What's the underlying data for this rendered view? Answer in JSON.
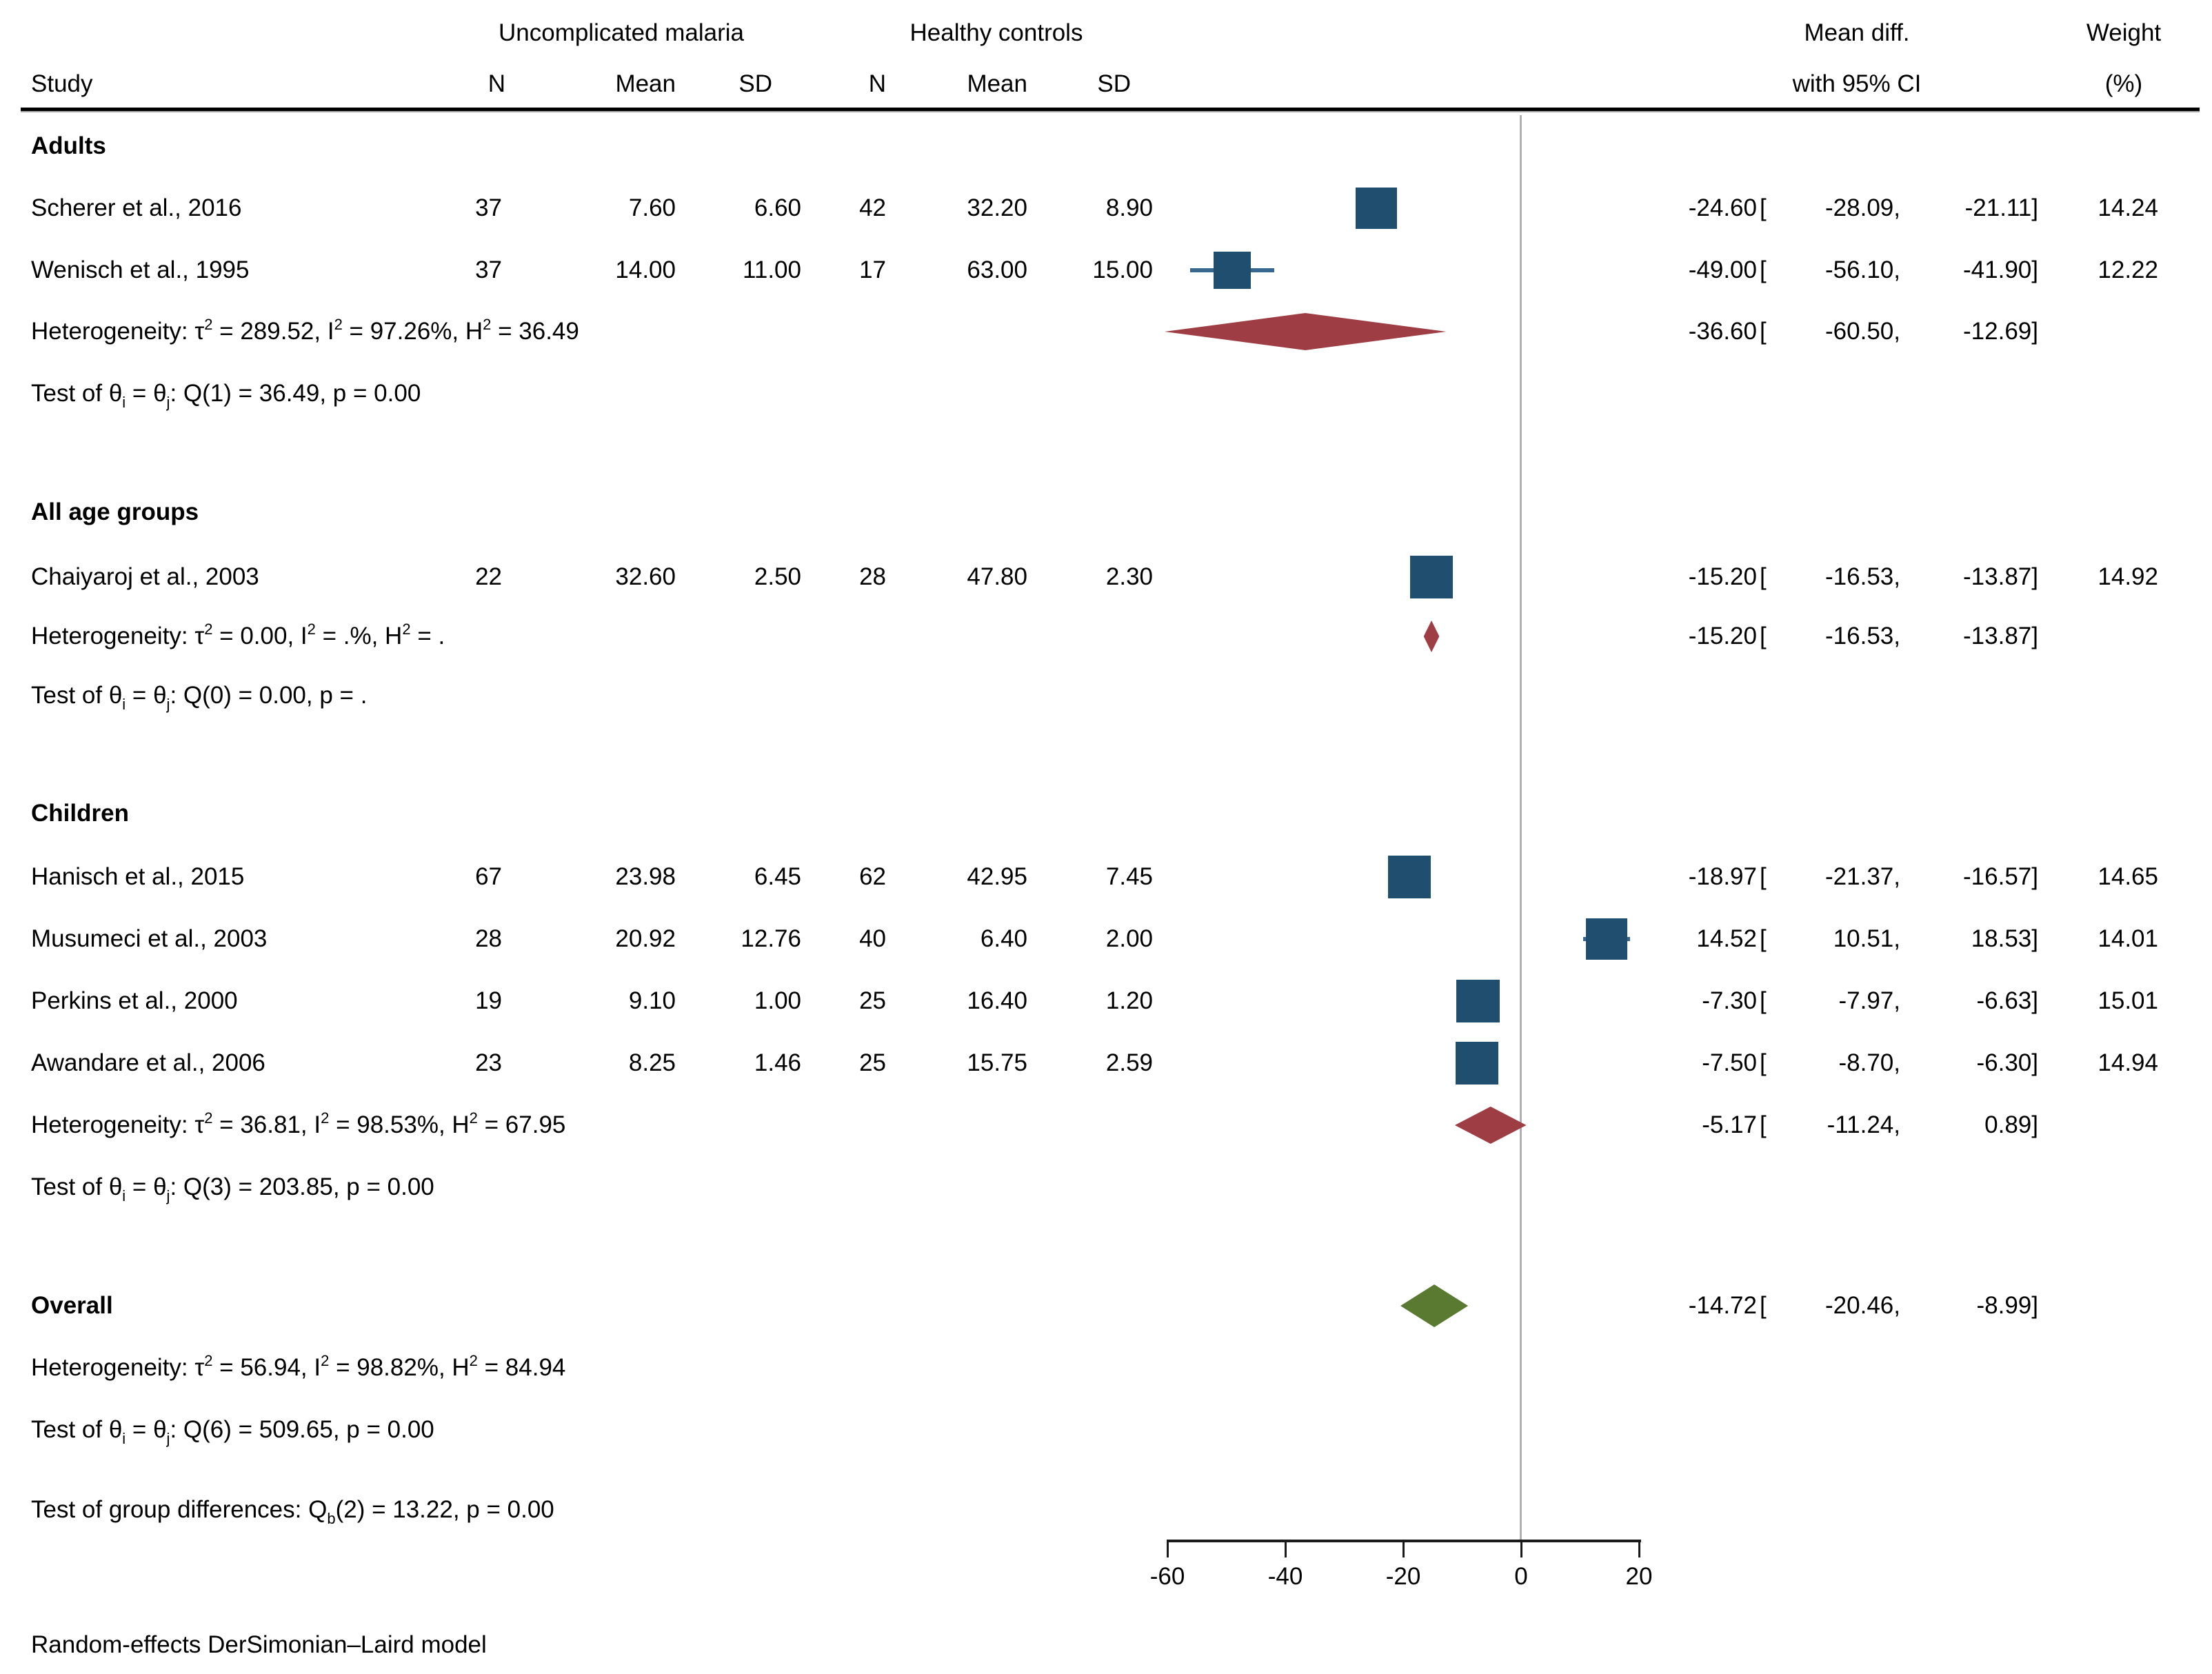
{
  "colors": {
    "blue": "#1f4e6e",
    "whisker": "#37678e",
    "maroon": "#9e3e44",
    "green": "#5a7a32",
    "zero_line": "#b0b0b0",
    "axis": "#1a1a1a"
  },
  "format": {
    "bracket_open": "["
  },
  "header": {
    "group1": "Uncomplicated malaria",
    "group2": "Healthy controls",
    "study": "Study",
    "n": "N",
    "mean": "Mean",
    "sd": "SD",
    "meandiff_line1": "Mean diff.",
    "meandiff_line2": "with 95% CI",
    "weight_line1": "Weight",
    "weight_line2": "(%)"
  },
  "footer": "Random-effects DerSimonian–Laird model",
  "chart_data": {
    "type": "forest",
    "effect_measure": "Mean diff. with 95% CI",
    "model": "Random-effects DerSimonian–Laird model",
    "x_axis": {
      "ticks": [
        -60,
        -40,
        -20,
        0,
        20
      ],
      "tick_labels": [
        "-60",
        "-40",
        "-20",
        "0",
        "20"
      ],
      "xlim": [
        -60,
        20
      ],
      "zero_reference": 0
    },
    "sections": [
      {
        "label": "Adults",
        "studies": [
          {
            "name": "Scherer et al., 2016",
            "n1": "37",
            "mean1": "7.60",
            "sd1": "6.60",
            "n2": "42",
            "mean2": "32.20",
            "sd2": "8.90",
            "est": -24.6,
            "lo": -28.09,
            "hi": -21.11,
            "weight": 14.24,
            "est_text": "-24.60",
            "lo_text": "-28.09,",
            "hi_text": "-21.11]",
            "weight_text": "14.24"
          },
          {
            "name": "Wenisch et al., 1995",
            "n1": "37",
            "mean1": "14.00",
            "sd1": "11.00",
            "n2": "17",
            "mean2": "63.00",
            "sd2": "15.00",
            "est": -49.0,
            "lo": -56.1,
            "hi": -41.9,
            "weight": 12.22,
            "est_text": "-49.00",
            "lo_text": "-56.10,",
            "hi_text": "-41.90]",
            "weight_text": "12.22"
          }
        ],
        "heterogeneity": [
          [
            "Heterogeneity: τ",
            ""
          ],
          [
            "2",
            "sup"
          ],
          [
            " = 289.52, I",
            ""
          ],
          [
            "2",
            "sup"
          ],
          [
            " = 97.26%, H",
            ""
          ],
          [
            "2",
            "sup"
          ],
          [
            " = 36.49",
            ""
          ]
        ],
        "test": [
          [
            "Test of θ",
            ""
          ],
          [
            "i",
            "sub"
          ],
          [
            " = θ",
            ""
          ],
          [
            "j",
            "sub"
          ],
          [
            ": Q(1) = 36.49, p = 0.00",
            ""
          ]
        ],
        "summary": {
          "est": -36.6,
          "lo": -60.5,
          "hi": -12.69,
          "color": "maroon",
          "dh": 54,
          "est_text": "-36.60",
          "lo_text": "-60.50,",
          "hi_text": "-12.69]"
        }
      },
      {
        "label": "All age groups",
        "studies": [
          {
            "name": "Chaiyaroj et al., 2003",
            "n1": "22",
            "mean1": "32.60",
            "sd1": "2.50",
            "n2": "28",
            "mean2": "47.80",
            "sd2": "2.30",
            "est": -15.2,
            "lo": -16.53,
            "hi": -13.87,
            "weight": 14.92,
            "est_text": "-15.20",
            "lo_text": "-16.53,",
            "hi_text": "-13.87]",
            "weight_text": "14.92"
          }
        ],
        "heterogeneity": [
          [
            "Heterogeneity: τ",
            ""
          ],
          [
            "2",
            "sup"
          ],
          [
            " = 0.00, I",
            ""
          ],
          [
            "2",
            "sup"
          ],
          [
            " = .%, H",
            ""
          ],
          [
            "2",
            "sup"
          ],
          [
            " = .",
            ""
          ]
        ],
        "test": [
          [
            "Test of θ",
            ""
          ],
          [
            "i",
            "sub"
          ],
          [
            " = θ",
            ""
          ],
          [
            "j",
            "sub"
          ],
          [
            ": Q(0) = 0.00, p = .",
            ""
          ]
        ],
        "summary": {
          "est": -15.2,
          "lo": -16.53,
          "hi": -13.87,
          "color": "maroon",
          "dh": 46,
          "est_text": "-15.20",
          "lo_text": "-16.53,",
          "hi_text": "-13.87]"
        }
      },
      {
        "label": "Children",
        "studies": [
          {
            "name": "Hanisch et al., 2015",
            "n1": "67",
            "mean1": "23.98",
            "sd1": "6.45",
            "n2": "62",
            "mean2": "42.95",
            "sd2": "7.45",
            "est": -18.97,
            "lo": -21.37,
            "hi": -16.57,
            "weight": 14.65,
            "est_text": "-18.97",
            "lo_text": "-21.37,",
            "hi_text": "-16.57]",
            "weight_text": "14.65"
          },
          {
            "name": "Musumeci et al., 2003",
            "n1": "28",
            "mean1": "20.92",
            "sd1": "12.76",
            "n2": "40",
            "mean2": "6.40",
            "sd2": "2.00",
            "est": 14.52,
            "lo": 10.51,
            "hi": 18.53,
            "weight": 14.01,
            "est_text": "14.52",
            "lo_text": "10.51,",
            "hi_text": "18.53]",
            "weight_text": "14.01"
          },
          {
            "name": "Perkins et al., 2000",
            "n1": "19",
            "mean1": "9.10",
            "sd1": "1.00",
            "n2": "25",
            "mean2": "16.40",
            "sd2": "1.20",
            "est": -7.3,
            "lo": -7.97,
            "hi": -6.63,
            "weight": 15.01,
            "est_text": "-7.30",
            "lo_text": "-7.97,",
            "hi_text": "-6.63]",
            "weight_text": "15.01"
          },
          {
            "name": "Awandare et al., 2006",
            "n1": "23",
            "mean1": "8.25",
            "sd1": "1.46",
            "n2": "25",
            "mean2": "15.75",
            "sd2": "2.59",
            "est": -7.5,
            "lo": -8.7,
            "hi": -6.3,
            "weight": 14.94,
            "est_text": "-7.50",
            "lo_text": "-8.70,",
            "hi_text": "-6.30]",
            "weight_text": "14.94"
          }
        ],
        "heterogeneity": [
          [
            "Heterogeneity: τ",
            ""
          ],
          [
            "2",
            "sup"
          ],
          [
            " = 36.81, I",
            ""
          ],
          [
            "2",
            "sup"
          ],
          [
            " = 98.53%, H",
            ""
          ],
          [
            "2",
            "sup"
          ],
          [
            " = 67.95",
            ""
          ]
        ],
        "test": [
          [
            "Test of θ",
            ""
          ],
          [
            "i",
            "sub"
          ],
          [
            " = θ",
            ""
          ],
          [
            "j",
            "sub"
          ],
          [
            ": Q(3) = 203.85, p = 0.00",
            ""
          ]
        ],
        "summary": {
          "est": -5.17,
          "lo": -11.24,
          "hi": 0.89,
          "color": "maroon",
          "dh": 54,
          "est_text": "-5.17",
          "lo_text": "-11.24,",
          "hi_text": "0.89]"
        }
      }
    ],
    "overall": {
      "label": "Overall",
      "heterogeneity": [
        [
          "Heterogeneity: τ",
          ""
        ],
        [
          "2",
          "sup"
        ],
        [
          " = 56.94, I",
          ""
        ],
        [
          "2",
          "sup"
        ],
        [
          " = 98.82%, H",
          ""
        ],
        [
          "2",
          "sup"
        ],
        [
          " = 84.94",
          ""
        ]
      ],
      "test": [
        [
          "Test of θ",
          ""
        ],
        [
          "i",
          "sub"
        ],
        [
          " = θ",
          ""
        ],
        [
          "j",
          "sub"
        ],
        [
          ": Q(6) = 509.65, p = 0.00",
          ""
        ]
      ],
      "summary": {
        "est": -14.72,
        "lo": -20.46,
        "hi": -8.99,
        "color": "green",
        "dh": 62,
        "est_text": "-14.72",
        "lo_text": "-20.46,",
        "hi_text": "-8.99]"
      }
    },
    "group_difference_test": [
      [
        "Test of group differences: Q",
        ""
      ],
      [
        "b",
        "sub"
      ],
      [
        "(2) = 13.22, p = 0.00",
        ""
      ]
    ]
  }
}
